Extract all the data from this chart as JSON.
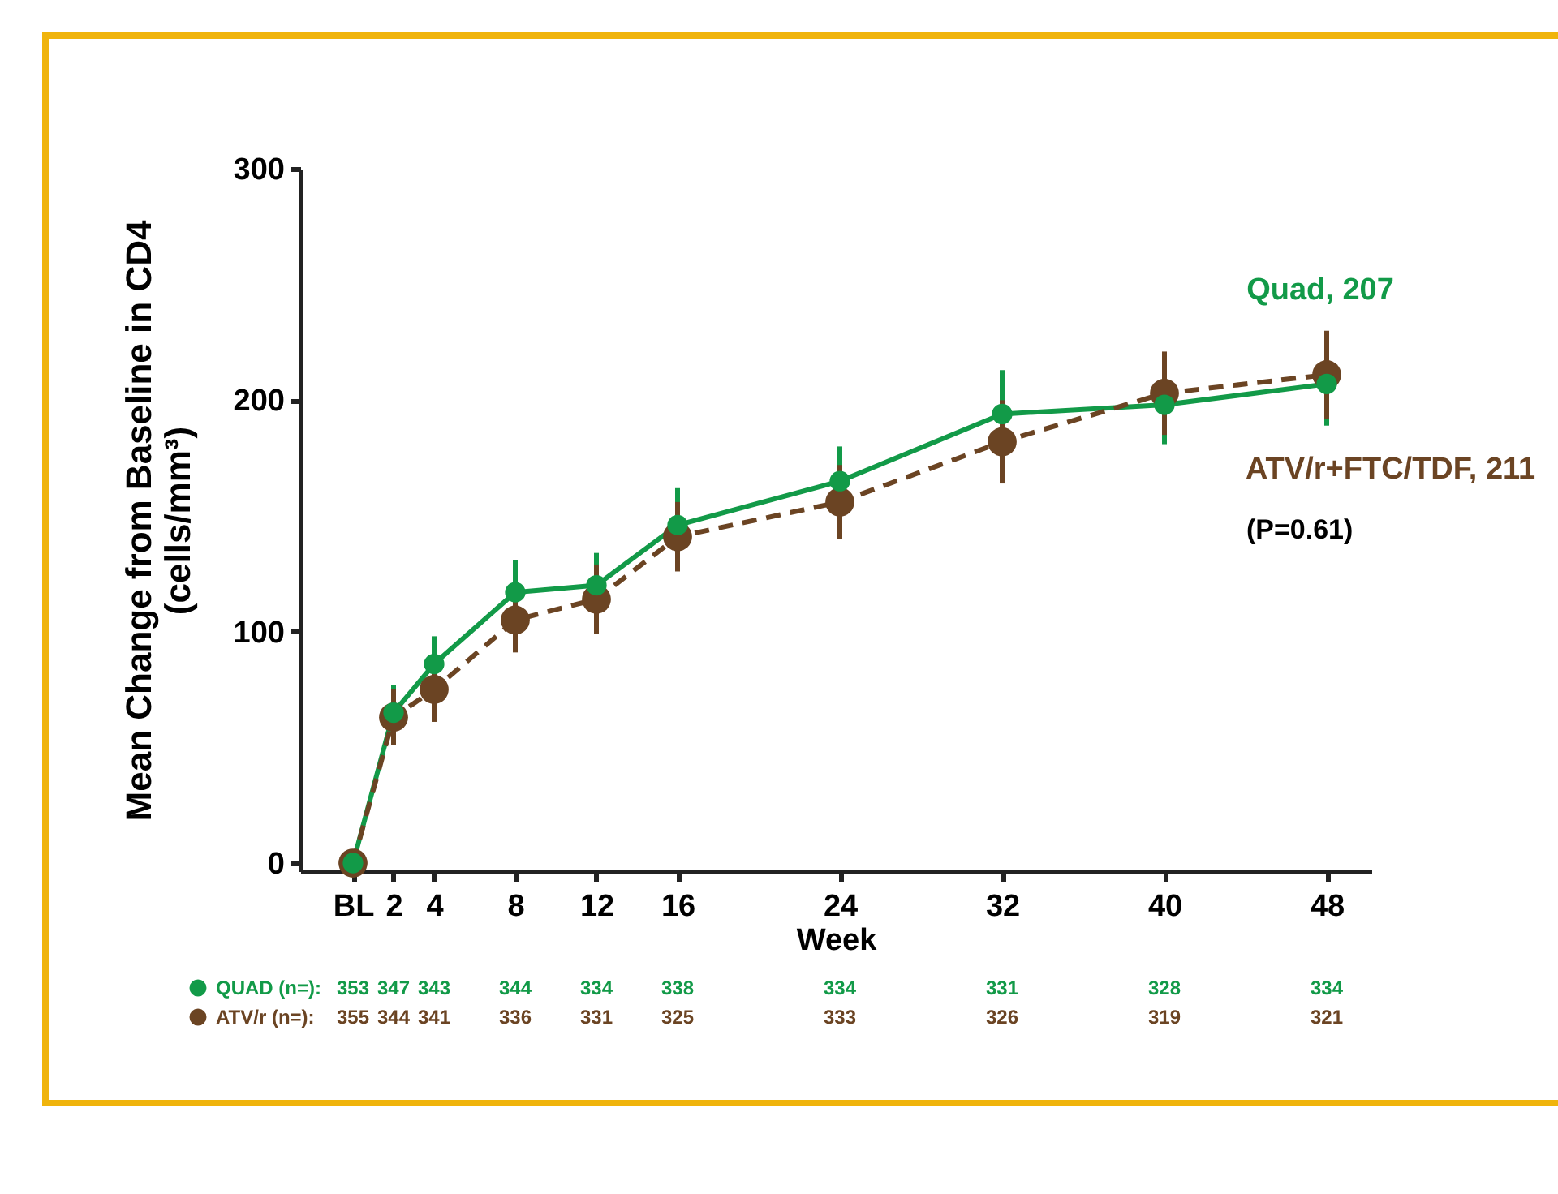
{
  "chart_data": {
    "type": "line",
    "xlabel": "Week",
    "ylabel": "Mean Change from Baseline in CD4 (cells/mm³)",
    "x": [
      0,
      2,
      4,
      8,
      12,
      16,
      24,
      32,
      40,
      48
    ],
    "xlim": [
      -2.6,
      50.2
    ],
    "xticks": [
      {
        "value": 0,
        "label": "BL"
      },
      2,
      4,
      8,
      12,
      16,
      24,
      32,
      40,
      48
    ],
    "ylim": [
      -3.5,
      300
    ],
    "yticks": [
      0,
      100,
      200,
      300
    ],
    "grid": false,
    "marker": "circle",
    "series": [
      {
        "name": "Quad, 207",
        "color": "#129a48",
        "line_style": "solid",
        "values": [
          0,
          65,
          86,
          117,
          120,
          146,
          165,
          194,
          198,
          207
        ],
        "errors": [
          null,
          12,
          12,
          14,
          14,
          16,
          15,
          19,
          17,
          18
        ]
      },
      {
        "name": "ATV/r+FTC/TDF, 211",
        "color": "#6b4423",
        "line_style": "dashed",
        "values": [
          0,
          63,
          75,
          105,
          114,
          141,
          156,
          182,
          203,
          211
        ],
        "errors": [
          null,
          12,
          14,
          14,
          15,
          15,
          16,
          18,
          18,
          19
        ]
      }
    ],
    "annotations": [
      "(P=0.61)",
      "QUAD (n=):",
      "353",
      "347",
      "343",
      "344",
      "334",
      "338",
      "334",
      "331",
      "328",
      "334",
      "ATV/r  (n=):",
      "355",
      "344",
      "341",
      "336",
      "331",
      "325",
      "333",
      "326",
      "319",
      "321"
    ]
  }
}
